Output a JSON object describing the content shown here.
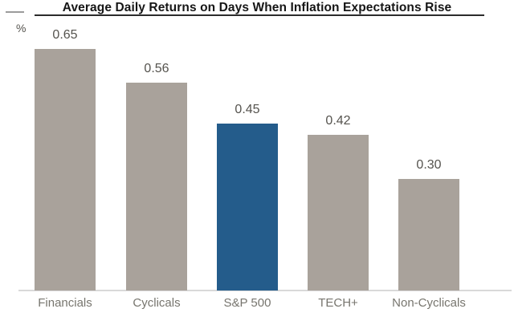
{
  "header": {
    "title": "Average Daily Returns on Days When Inflation Expectations Rise",
    "unit_label": "%"
  },
  "colors": {
    "bar_default": "#a9a29b",
    "bar_highlight": "#245c8b",
    "title_text": "#161616",
    "title_rule": "#2b2b2b",
    "left_tick": "#9b9b9b",
    "value_text": "#55534e",
    "category_text": "#77756e",
    "baseline": "#d9d9d9"
  },
  "chart_data": {
    "type": "bar",
    "title": "Average Daily Returns on Days When Inflation Expectations Rise",
    "unit": "%",
    "categories": [
      "Financials",
      "Cyclicals",
      "S&P 500",
      "TECH+",
      "Non-Cyclicals"
    ],
    "values": [
      0.65,
      0.56,
      0.45,
      0.42,
      0.3
    ],
    "value_labels": [
      "0.65",
      "0.56",
      "0.45",
      "0.42",
      "0.30"
    ],
    "highlight_index": 2,
    "highlight_category": "S&P 500",
    "xlabel": "",
    "ylabel": "%",
    "ylim": [
      0,
      0.7
    ],
    "grid": false,
    "legend": false,
    "bar_value_labels_shown": true,
    "y_axis_ticks_shown": false
  }
}
